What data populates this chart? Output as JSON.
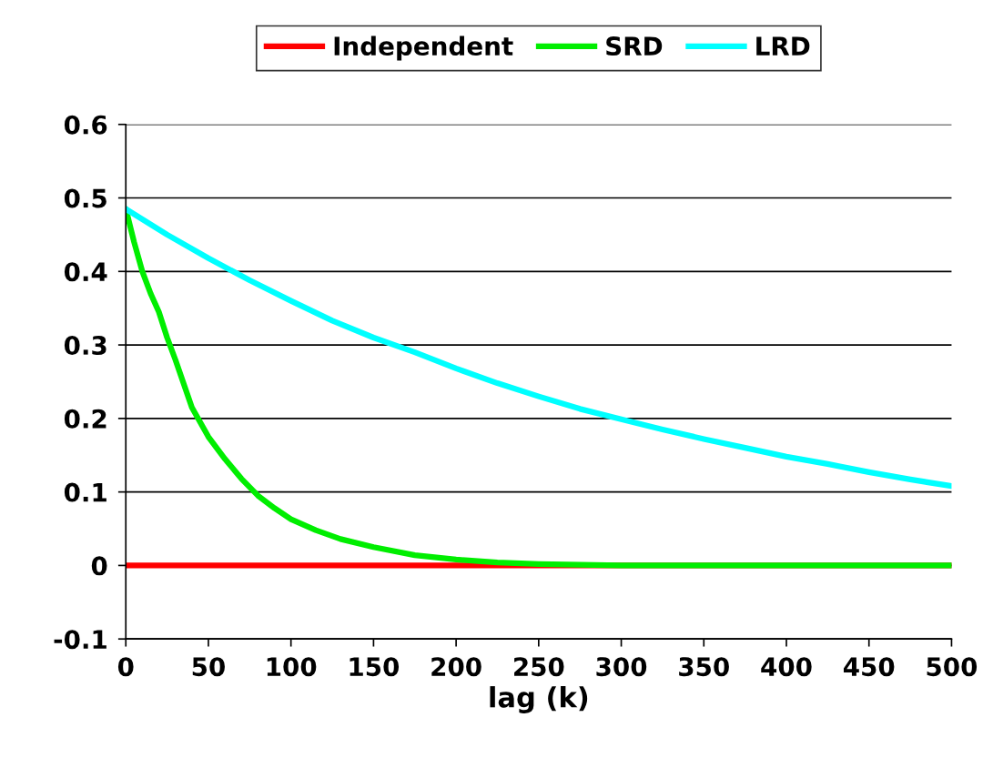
{
  "chart_data": {
    "type": "line",
    "xlabel": "lag (k)",
    "xlim": [
      0,
      500
    ],
    "xticks": [
      0,
      50,
      100,
      150,
      200,
      250,
      300,
      350,
      400,
      450,
      500
    ],
    "ylim": [
      -0.1,
      0.6
    ],
    "yticks": [
      -0.1,
      0,
      0.1,
      0.2,
      0.3,
      0.4,
      0.5,
      0.6
    ],
    "grid": "y",
    "legend": "top",
    "marker": "none",
    "line_style": "solid",
    "series": [
      {
        "name": "Independent",
        "color": "#ff0000",
        "x": [
          0,
          500
        ],
        "values": [
          0,
          0
        ]
      },
      {
        "name": "SRD",
        "color": "#00ee00",
        "x": [
          0,
          5,
          10,
          15,
          20,
          25,
          30,
          40,
          50,
          60,
          70,
          80,
          90,
          100,
          115,
          130,
          150,
          175,
          200,
          225,
          250,
          275,
          300,
          500
        ],
        "values": [
          0.485,
          0.44,
          0.4,
          0.37,
          0.345,
          0.31,
          0.28,
          0.215,
          0.175,
          0.145,
          0.118,
          0.095,
          0.078,
          0.063,
          0.048,
          0.036,
          0.025,
          0.014,
          0.008,
          0.004,
          0.002,
          0.001,
          0,
          0
        ]
      },
      {
        "name": "LRD",
        "color": "#00ffff",
        "x": [
          0,
          25,
          50,
          75,
          100,
          125,
          150,
          175,
          200,
          225,
          250,
          275,
          300,
          325,
          350,
          375,
          400,
          425,
          450,
          475,
          500
        ],
        "values": [
          0.485,
          0.45,
          0.418,
          0.388,
          0.36,
          0.333,
          0.31,
          0.29,
          0.268,
          0.248,
          0.23,
          0.213,
          0.199,
          0.185,
          0.172,
          0.16,
          0.148,
          0.138,
          0.127,
          0.117,
          0.108
        ]
      }
    ]
  }
}
